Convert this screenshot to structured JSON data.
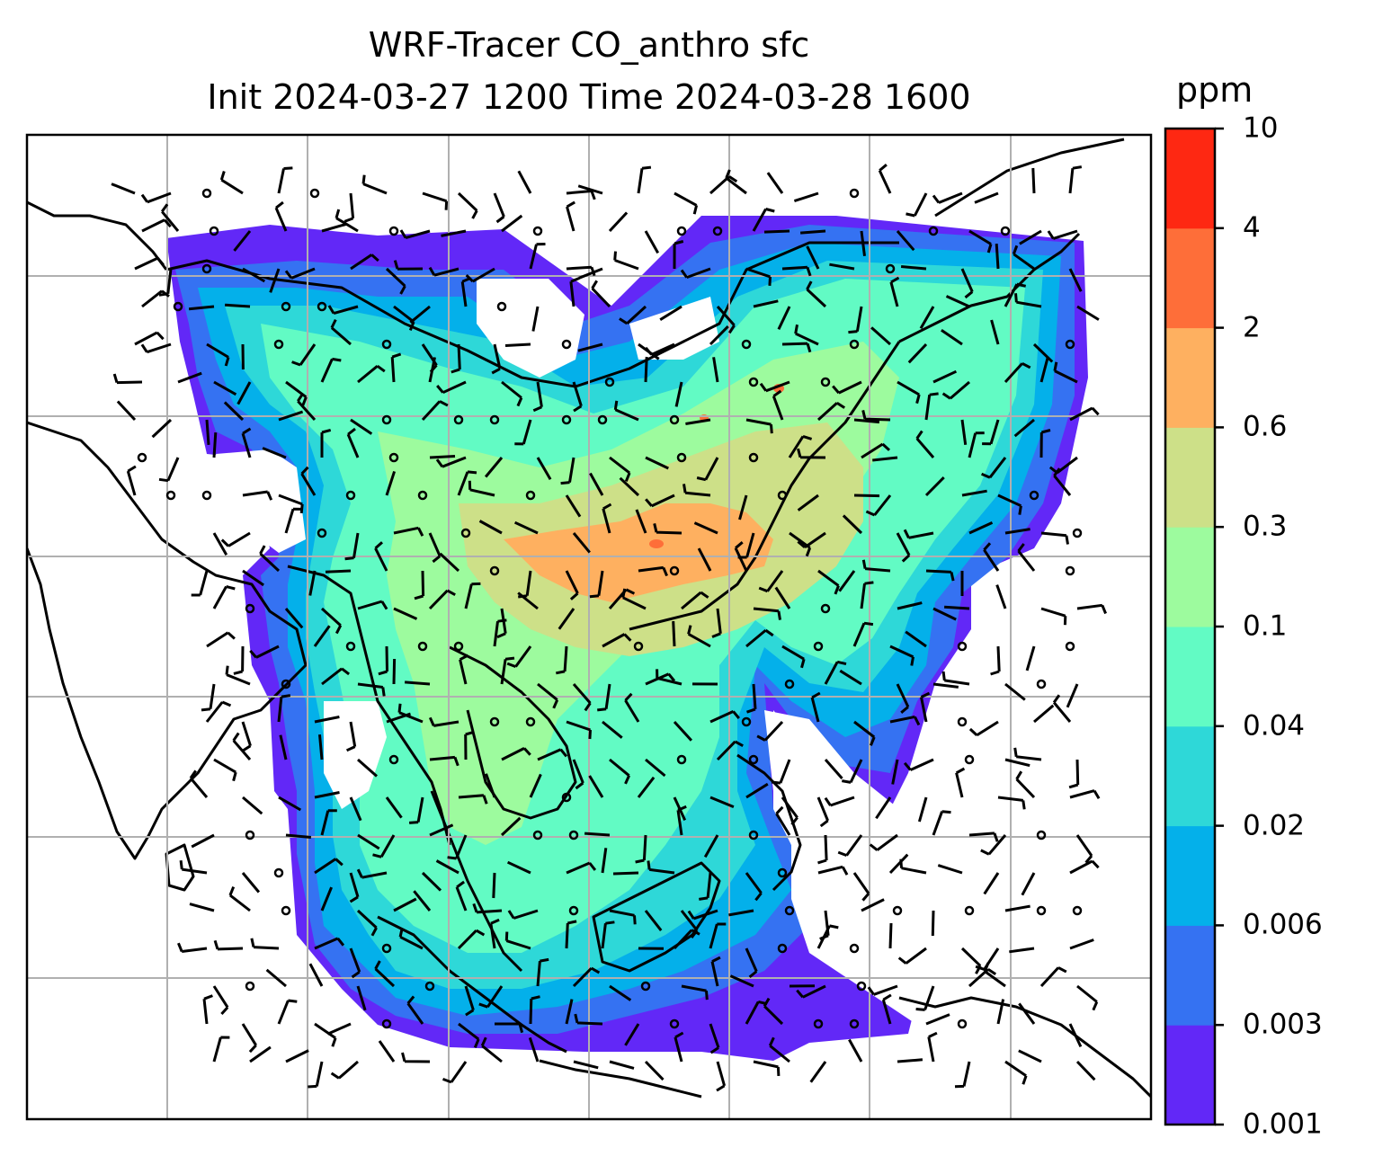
{
  "title": {
    "line1": "WRF-Tracer CO_anthro sfc",
    "line2": "Init 2024-03-27 1200 Time 2024-03-28 1600"
  },
  "colorbar": {
    "unit": "ppm",
    "ticks": [
      "0.001",
      "0.003",
      "0.006",
      "0.02",
      "0.04",
      "0.1",
      "0.3",
      "0.6",
      "2",
      "4",
      "10"
    ],
    "colors": [
      "#6228f7",
      "#3572f2",
      "#04b0ea",
      "#2ed8d8",
      "#62fbc4",
      "#9dfb9e",
      "#cde088",
      "#feb060",
      "#fe6e39",
      "#fe2812"
    ]
  },
  "map": {
    "gridline_color": "#b0b0b0",
    "coastline_color": "#000000",
    "field_name": "CO_anthro",
    "overlay": "wind-barbs"
  }
}
